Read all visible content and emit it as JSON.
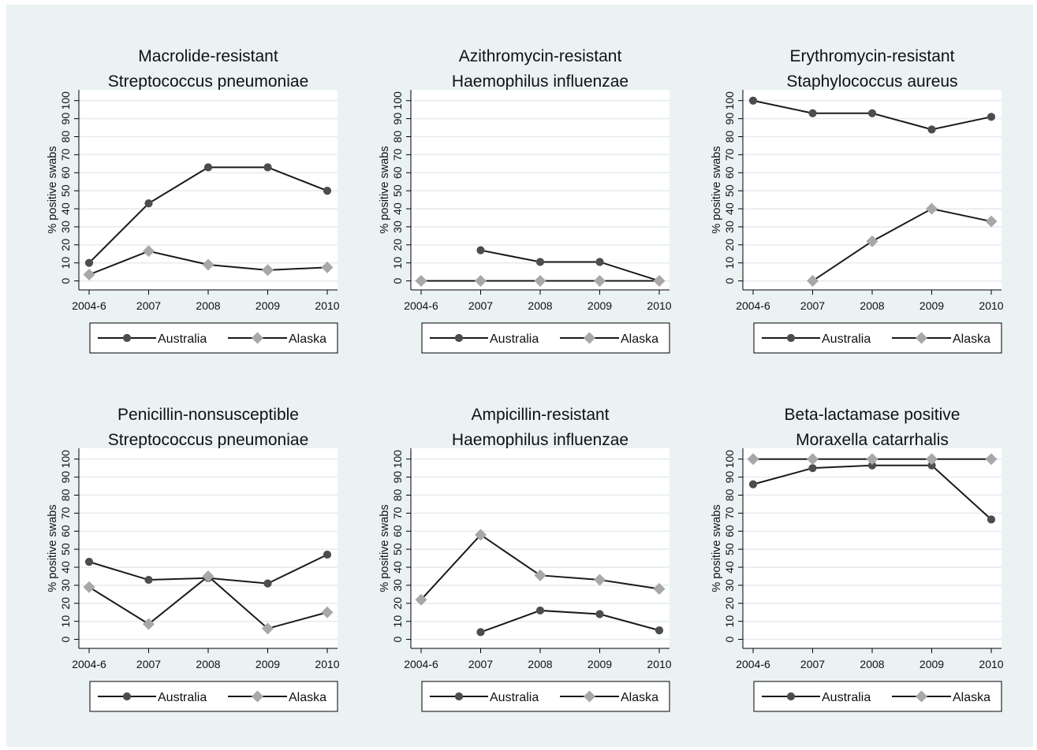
{
  "colors": {
    "background": "#eaf2f3",
    "plot_area": "#ffffff",
    "grid": "#e6ecef",
    "australia": "#4d4d4d",
    "alaska": "#a8a8a8",
    "line": "#1a1a1a"
  },
  "chart_data": [
    {
      "type": "line",
      "title": [
        "Macrolide-resistant",
        "Streptococcus pneumoniae"
      ],
      "ylabel": "% positive swabs",
      "xlabel": "",
      "categories": [
        "2004-6",
        "2007",
        "2008",
        "2009",
        "2010"
      ],
      "yticks": [
        0,
        10,
        20,
        30,
        40,
        50,
        60,
        70,
        80,
        90,
        100
      ],
      "ylim": [
        -5,
        106
      ],
      "grid": true,
      "legend": "bottom",
      "series": [
        {
          "name": "Australia",
          "marker": "circle",
          "values": [
            10,
            43,
            63,
            63,
            50
          ]
        },
        {
          "name": "Alaska",
          "marker": "diamond",
          "values": [
            3.5,
            16.5,
            9,
            6,
            7.5
          ]
        }
      ]
    },
    {
      "type": "line",
      "title": [
        "Azithromycin-resistant",
        "Haemophilus influenzae"
      ],
      "ylabel": "% positive swabs",
      "xlabel": "",
      "categories": [
        "2004-6",
        "2007",
        "2008",
        "2009",
        "2010"
      ],
      "yticks": [
        0,
        10,
        20,
        30,
        40,
        50,
        60,
        70,
        80,
        90,
        100
      ],
      "ylim": [
        -5,
        106
      ],
      "grid": true,
      "legend": "bottom",
      "series": [
        {
          "name": "Australia",
          "marker": "circle",
          "values": [
            null,
            17,
            10.5,
            10.5,
            0
          ]
        },
        {
          "name": "Alaska",
          "marker": "diamond",
          "values": [
            0,
            0,
            0,
            0,
            0
          ]
        }
      ]
    },
    {
      "type": "line",
      "title": [
        "Erythromycin-resistant",
        "Staphylococcus aureus"
      ],
      "ylabel": "% positive swabs",
      "xlabel": "",
      "categories": [
        "2004-6",
        "2007",
        "2008",
        "2009",
        "2010"
      ],
      "yticks": [
        0,
        10,
        20,
        30,
        40,
        50,
        60,
        70,
        80,
        90,
        100
      ],
      "ylim": [
        -5,
        106
      ],
      "grid": true,
      "legend": "bottom",
      "series": [
        {
          "name": "Australia",
          "marker": "circle",
          "values": [
            100,
            93,
            93,
            84,
            91
          ]
        },
        {
          "name": "Alaska",
          "marker": "diamond",
          "values": [
            null,
            0,
            22,
            40,
            33
          ]
        }
      ]
    },
    {
      "type": "line",
      "title": [
        "Penicillin-nonsusceptible",
        "Streptococcus pneumoniae"
      ],
      "ylabel": "% positive swabs",
      "xlabel": "",
      "categories": [
        "2004-6",
        "2007",
        "2008",
        "2009",
        "2010"
      ],
      "yticks": [
        0,
        10,
        20,
        30,
        40,
        50,
        60,
        70,
        80,
        90,
        100
      ],
      "ylim": [
        -5,
        106
      ],
      "grid": true,
      "legend": "bottom",
      "series": [
        {
          "name": "Australia",
          "marker": "circle",
          "values": [
            43,
            33,
            34,
            31,
            47
          ]
        },
        {
          "name": "Alaska",
          "marker": "diamond",
          "values": [
            29,
            8.5,
            35,
            6,
            15
          ]
        }
      ]
    },
    {
      "type": "line",
      "title": [
        "Ampicillin-resistant",
        "Haemophilus influenzae"
      ],
      "ylabel": "% positive swabs",
      "xlabel": "",
      "categories": [
        "2004-6",
        "2007",
        "2008",
        "2009",
        "2010"
      ],
      "yticks": [
        0,
        10,
        20,
        30,
        40,
        50,
        60,
        70,
        80,
        90,
        100
      ],
      "ylim": [
        -5,
        106
      ],
      "grid": true,
      "legend": "bottom",
      "series": [
        {
          "name": "Australia",
          "marker": "circle",
          "values": [
            null,
            4,
            16,
            14,
            5
          ]
        },
        {
          "name": "Alaska",
          "marker": "diamond",
          "values": [
            22,
            58,
            35.5,
            33,
            28
          ]
        }
      ]
    },
    {
      "type": "line",
      "title": [
        "Beta-lactamase positive",
        "Moraxella catarrhalis"
      ],
      "ylabel": "% positive swabs",
      "xlabel": "",
      "categories": [
        "2004-6",
        "2007",
        "2008",
        "2009",
        "2010"
      ],
      "yticks": [
        0,
        10,
        20,
        30,
        40,
        50,
        60,
        70,
        80,
        90,
        100
      ],
      "ylim": [
        -5,
        106
      ],
      "grid": true,
      "legend": "bottom",
      "series": [
        {
          "name": "Australia",
          "marker": "circle",
          "values": [
            86,
            95,
            96.5,
            96.5,
            66.5
          ]
        },
        {
          "name": "Alaska",
          "marker": "diamond",
          "values": [
            100,
            100,
            100,
            100,
            100
          ]
        }
      ]
    }
  ]
}
